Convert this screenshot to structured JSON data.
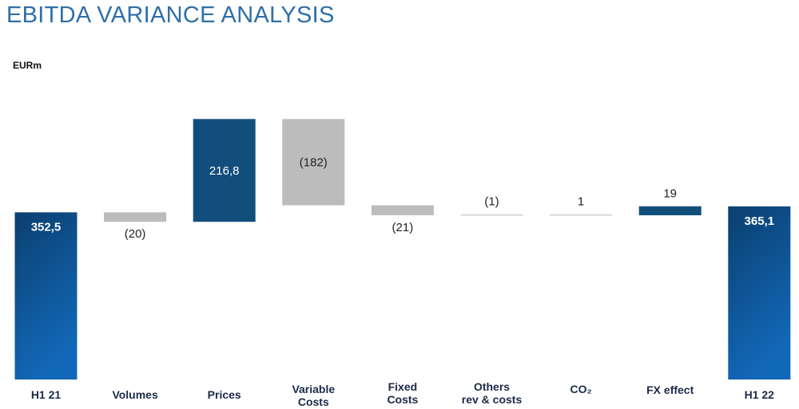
{
  "page": {
    "title": "EBITDA VARIANCE ANALYSIS",
    "unit": "EURm"
  },
  "colors": {
    "total": "#0f5a9f",
    "positive": "#124e7c",
    "negative": "#bcbcbc",
    "title": "#2f6fa8"
  },
  "chart_data": {
    "type": "waterfall",
    "title": "EBITDA VARIANCE ANALYSIS",
    "ylabel": "EURm",
    "categories": [
      "H1 21",
      "Volumes",
      "Prices",
      "Variable Costs",
      "Fixed Costs",
      "Others rev & costs",
      "CO₂",
      "FX effect",
      "H1 22"
    ],
    "values": [
      352.5,
      -20,
      216.8,
      -182,
      -21,
      -1,
      1,
      19,
      365.1
    ],
    "labels": [
      "352,5",
      "(20)",
      "216,8",
      "(182)",
      "(21)",
      "(1)",
      "1",
      "19",
      "365,1"
    ],
    "kinds": [
      "total",
      "delta",
      "delta",
      "delta",
      "delta",
      "delta",
      "delta",
      "delta",
      "total"
    ]
  }
}
